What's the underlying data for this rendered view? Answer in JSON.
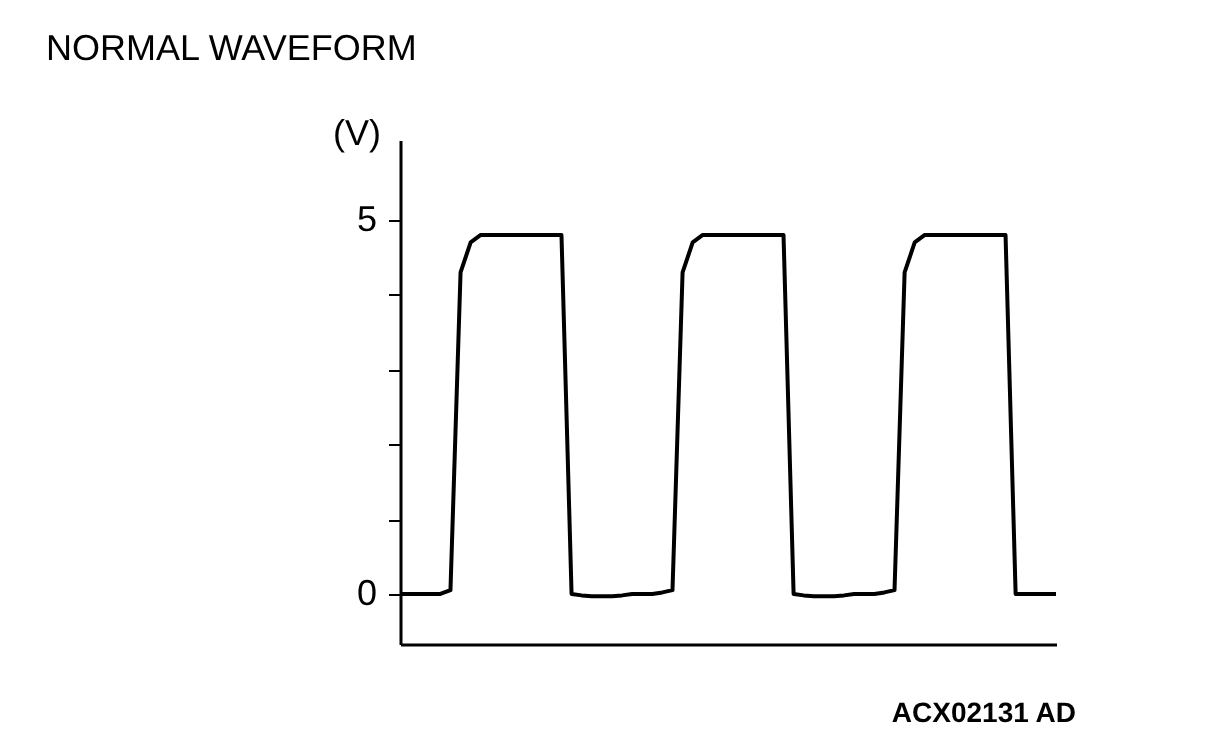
{
  "chart_data": {
    "type": "line",
    "title": "NORMAL WAVEFORM",
    "ylabel": "(V)",
    "annotations": [
      "ACX02131 AD"
    ],
    "categories": [
      null,
      null,
      null,
      null,
      null,
      null,
      null,
      null,
      null,
      null,
      null,
      null,
      null,
      null,
      null,
      null,
      null,
      null,
      null,
      null,
      null,
      null,
      null,
      null,
      null,
      null,
      null,
      null,
      null,
      null,
      null,
      null,
      null,
      null,
      null,
      null,
      null,
      null,
      null,
      null,
      null,
      null,
      null,
      null,
      null,
      null,
      null,
      null,
      null,
      null,
      null,
      null,
      null,
      null,
      null,
      null,
      null,
      null,
      null,
      null,
      null,
      null,
      null,
      null,
      null,
      null
    ],
    "series": [
      {
        "color": "#000000",
        "values": [
          0,
          0,
          0,
          0,
          0,
          0.05,
          4.3,
          4.7,
          4.8,
          4.8,
          4.8,
          4.8,
          4.8,
          4.8,
          4.8,
          4.8,
          4.8,
          0,
          -0.02,
          -0.03,
          -0.03,
          -0.03,
          -0.02,
          0,
          0,
          0,
          0.02,
          0.05,
          4.3,
          4.7,
          4.8,
          4.8,
          4.8,
          4.8,
          4.8,
          4.8,
          4.8,
          4.8,
          4.8,
          0,
          -0.02,
          -0.03,
          -0.03,
          -0.03,
          -0.02,
          0,
          0,
          0,
          0.02,
          0.05,
          4.3,
          4.7,
          4.8,
          4.8,
          4.8,
          4.8,
          4.8,
          4.8,
          4.8,
          4.8,
          4.8,
          0,
          0,
          0,
          0,
          0
        ]
      }
    ],
    "ylim": [
      -0.67,
      6.07
    ],
    "yticks": [
      0,
      {
        "value": 1,
        "label": null
      },
      {
        "value": 2,
        "label": null
      },
      {
        "value": 3,
        "label": null
      },
      {
        "value": 4,
        "label": null
      },
      5
    ],
    "tick_labels": "y",
    "grid": false,
    "marker": "none",
    "line_style": "solid"
  }
}
